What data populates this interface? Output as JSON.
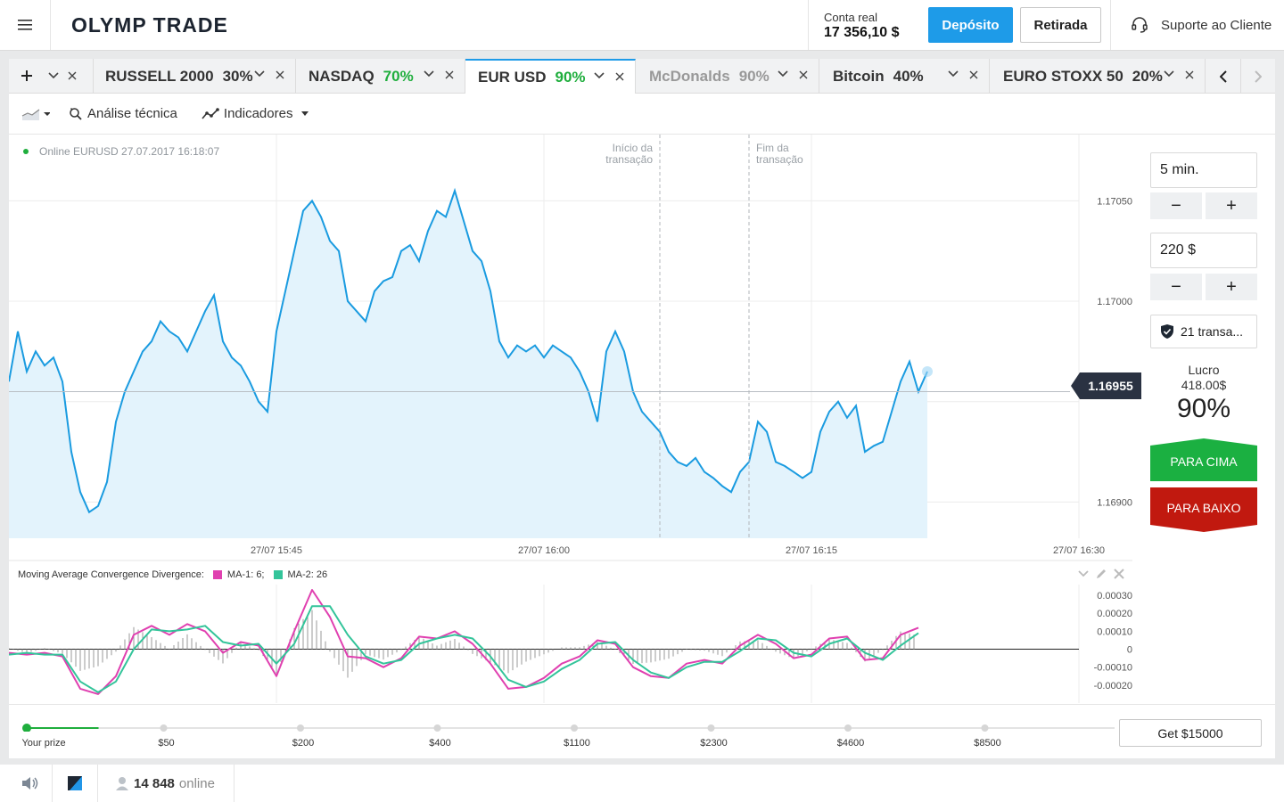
{
  "header": {
    "logo": "OLYMP TRADE",
    "account_label": "Conta real",
    "balance": "17 356,10 $",
    "deposit": "Depósito",
    "withdraw": "Retirada",
    "support": "Suporte ao Cliente"
  },
  "tabs": [
    {
      "name": "RUSSELL 2000",
      "pct": "30%"
    },
    {
      "name": "NASDAQ",
      "pct": "70%"
    },
    {
      "name": "EUR USD",
      "pct": "90%"
    },
    {
      "name": "McDonalds",
      "pct": "90%"
    },
    {
      "name": "Bitcoin",
      "pct": "40%"
    },
    {
      "name": "EURO STOXX 50",
      "pct": "20%"
    }
  ],
  "toolbar": {
    "analysis": "Análise técnica",
    "indicators": "Indicadores"
  },
  "chart_info": {
    "online": "Online EURUSD 27.07.2017 16:18:07",
    "start_label": [
      "Início da",
      "transação"
    ],
    "end_label": [
      "Fim da",
      "transação"
    ],
    "current_price": "1.16955"
  },
  "trade": {
    "time": "5 min.",
    "amount": "220 $",
    "minus": "−",
    "plus": "+",
    "transactions": "21 transa...",
    "profit_label": "Lucro",
    "profit_value": "418.00$",
    "profit_pct": "90%",
    "up": "PARA CIMA",
    "down": "PARA BAIXO"
  },
  "macd": {
    "title": "Moving Average Convergence Divergence:",
    "ma1": "MA-1: 6;",
    "ma2": "MA-2: 26",
    "ma1_color": "#e040b0",
    "ma2_color": "#33c49a"
  },
  "prize": {
    "levels": [
      "Your prize",
      "$50",
      "$200",
      "$400",
      "$1100",
      "$2300",
      "$4600",
      "$8500"
    ],
    "button": "Get $15000",
    "progress": 0.11
  },
  "footer": {
    "online_count": "14 848",
    "online_label": "online"
  },
  "chart_data": [
    {
      "type": "area",
      "title": "",
      "x_ticks": [
        "27/07 15:45",
        "27/07 16:00",
        "27/07 16:15",
        "27/07 16:30"
      ],
      "y_ticks": [
        1.1705,
        1.17,
        1.1695,
        1.169
      ],
      "y_tick_labels": [
        "1.17050",
        "1.17000",
        "",
        "1.16900"
      ],
      "ylim": [
        1.16882,
        1.17083
      ],
      "start_x": 16.5,
      "end_x": 21.5,
      "x_range": [
        -20,
        40
      ],
      "series": [
        {
          "color": "#1a9be0",
          "points": [
            [
              -20,
              1.1696
            ],
            [
              -19.5,
              1.16985
            ],
            [
              -19,
              1.16965
            ],
            [
              -18.5,
              1.16975
            ],
            [
              -18,
              1.16968
            ],
            [
              -17.5,
              1.16972
            ],
            [
              -17,
              1.1696
            ],
            [
              -16.5,
              1.16925
            ],
            [
              -16,
              1.16905
            ],
            [
              -15.5,
              1.16895
            ],
            [
              -15,
              1.16898
            ],
            [
              -14.5,
              1.1691
            ],
            [
              -14,
              1.1694
            ],
            [
              -13.5,
              1.16955
            ],
            [
              -13,
              1.16965
            ],
            [
              -12.5,
              1.16975
            ],
            [
              -12,
              1.1698
            ],
            [
              -11.5,
              1.1699
            ],
            [
              -11,
              1.16985
            ],
            [
              -10.5,
              1.16982
            ],
            [
              -10,
              1.16975
            ],
            [
              -9.5,
              1.16985
            ],
            [
              -9,
              1.16995
            ],
            [
              -8.5,
              1.17003
            ],
            [
              -8,
              1.1698
            ],
            [
              -7.5,
              1.16972
            ],
            [
              -7,
              1.16968
            ],
            [
              -6.5,
              1.1696
            ],
            [
              -6,
              1.1695
            ],
            [
              -5.5,
              1.16945
            ],
            [
              -5,
              1.16985
            ],
            [
              -4.5,
              1.17005
            ],
            [
              -4,
              1.17025
            ],
            [
              -3.5,
              1.17045
            ],
            [
              -3,
              1.1705
            ],
            [
              -2.5,
              1.17042
            ],
            [
              -2,
              1.1703
            ],
            [
              -1.5,
              1.17025
            ],
            [
              -1,
              1.17
            ],
            [
              -0.5,
              1.16995
            ],
            [
              0,
              1.1699
            ],
            [
              0.5,
              1.17005
            ],
            [
              1,
              1.1701
            ],
            [
              1.5,
              1.17012
            ],
            [
              2,
              1.17025
            ],
            [
              2.5,
              1.17028
            ],
            [
              3,
              1.1702
            ],
            [
              3.5,
              1.17035
            ],
            [
              4,
              1.17045
            ],
            [
              4.5,
              1.17042
            ],
            [
              5,
              1.17055
            ],
            [
              5.5,
              1.1704
            ],
            [
              6,
              1.17025
            ],
            [
              6.5,
              1.1702
            ],
            [
              7,
              1.17005
            ],
            [
              7.5,
              1.1698
            ],
            [
              8,
              1.16972
            ],
            [
              8.5,
              1.16978
            ],
            [
              9,
              1.16975
            ],
            [
              9.5,
              1.16978
            ],
            [
              10,
              1.16972
            ],
            [
              10.5,
              1.16978
            ],
            [
              11,
              1.16975
            ],
            [
              11.5,
              1.16972
            ],
            [
              12,
              1.16965
            ],
            [
              12.5,
              1.16955
            ],
            [
              13,
              1.1694
            ],
            [
              13.5,
              1.16975
            ],
            [
              14,
              1.16985
            ],
            [
              14.5,
              1.16975
            ],
            [
              15,
              1.16955
            ],
            [
              15.5,
              1.16945
            ],
            [
              16,
              1.1694
            ],
            [
              16.5,
              1.16935
            ],
            [
              17,
              1.16925
            ],
            [
              17.5,
              1.1692
            ],
            [
              18,
              1.16918
            ],
            [
              18.5,
              1.16922
            ],
            [
              19,
              1.16915
            ],
            [
              19.5,
              1.16912
            ],
            [
              20,
              1.16908
            ],
            [
              20.5,
              1.16905
            ],
            [
              21,
              1.16915
            ],
            [
              21.5,
              1.1692
            ],
            [
              22,
              1.1694
            ],
            [
              22.5,
              1.16935
            ],
            [
              23,
              1.1692
            ],
            [
              23.5,
              1.16918
            ],
            [
              24,
              1.16915
            ],
            [
              24.5,
              1.16912
            ],
            [
              25,
              1.16915
            ],
            [
              25.5,
              1.16935
            ],
            [
              26,
              1.16945
            ],
            [
              26.5,
              1.1695
            ],
            [
              27,
              1.16942
            ],
            [
              27.5,
              1.16948
            ],
            [
              28,
              1.16925
            ],
            [
              28.5,
              1.16928
            ],
            [
              29,
              1.1693
            ],
            [
              29.5,
              1.16945
            ],
            [
              30,
              1.1696
            ],
            [
              30.5,
              1.1697
            ],
            [
              31,
              1.16955
            ],
            [
              31.5,
              1.16965
            ]
          ]
        }
      ]
    },
    {
      "type": "line",
      "title": "Moving Average Convergence Divergence:",
      "y_ticks": [
        0.0003,
        0.0002,
        0.0001,
        0,
        -0.0001,
        -0.0002
      ],
      "y_tick_labels": [
        "0.00030",
        "0.00020",
        "0.00010",
        "0",
        "-0.00010",
        "-0.00020"
      ],
      "ylim": [
        -0.0003,
        0.00036
      ],
      "x_range": [
        -20,
        40
      ],
      "series": [
        {
          "name": "MA-1: 6;",
          "color": "#e040b0",
          "points": [
            [
              -20,
              -2e-05
            ],
            [
              -19,
              -3e-05
            ],
            [
              -18,
              -2e-05
            ],
            [
              -17,
              -4e-05
            ],
            [
              -16,
              -0.00022
            ],
            [
              -15,
              -0.00025
            ],
            [
              -14,
              -0.00015
            ],
            [
              -13,
              8e-05
            ],
            [
              -12,
              0.00013
            ],
            [
              -11,
              8e-05
            ],
            [
              -10,
              0.00014
            ],
            [
              -9,
              0.0001
            ],
            [
              -8,
              -2e-05
            ],
            [
              -7,
              4e-05
            ],
            [
              -6,
              2e-05
            ],
            [
              -5,
              -0.00015
            ],
            [
              -4,
              0.0001
            ],
            [
              -3,
              0.00033
            ],
            [
              -2,
              0.00018
            ],
            [
              -1,
              -4e-05
            ],
            [
              0,
              -5e-05
            ],
            [
              1,
              -0.0001
            ],
            [
              2,
              -5e-05
            ],
            [
              3,
              7e-05
            ],
            [
              4,
              6e-05
            ],
            [
              5,
              0.0001
            ],
            [
              6,
              3e-05
            ],
            [
              7,
              -8e-05
            ],
            [
              8,
              -0.00022
            ],
            [
              9,
              -0.00021
            ],
            [
              10,
              -0.00016
            ],
            [
              11,
              -8e-05
            ],
            [
              12,
              -4e-05
            ],
            [
              13,
              5e-05
            ],
            [
              14,
              3e-05
            ],
            [
              15,
              -0.0001
            ],
            [
              16,
              -0.00015
            ],
            [
              17,
              -0.00016
            ],
            [
              18,
              -8e-05
            ],
            [
              19,
              -6e-05
            ],
            [
              20,
              -8e-05
            ],
            [
              21,
              2e-05
            ],
            [
              22,
              8e-05
            ],
            [
              23,
              3e-05
            ],
            [
              24,
              -5e-05
            ],
            [
              25,
              -3e-05
            ],
            [
              26,
              6e-05
            ],
            [
              27,
              7e-05
            ],
            [
              28,
              -6e-05
            ],
            [
              29,
              -5e-05
            ],
            [
              30,
              8e-05
            ],
            [
              31,
              0.00012
            ]
          ]
        },
        {
          "name": "MA-2: 26",
          "color": "#33c49a",
          "points": [
            [
              -20,
              -3e-05
            ],
            [
              -19,
              -2e-05
            ],
            [
              -18,
              -3e-05
            ],
            [
              -17,
              -3e-05
            ],
            [
              -16,
              -0.00018
            ],
            [
              -15,
              -0.00024
            ],
            [
              -14,
              -0.00018
            ],
            [
              -13,
              0.0
            ],
            [
              -12,
              0.00011
            ],
            [
              -11,
              0.0001
            ],
            [
              -10,
              0.00011
            ],
            [
              -9,
              0.00013
            ],
            [
              -8,
              4e-05
            ],
            [
              -7,
              2e-05
            ],
            [
              -6,
              3e-05
            ],
            [
              -5,
              -8e-05
            ],
            [
              -4,
              3e-05
            ],
            [
              -3,
              0.00024
            ],
            [
              -2,
              0.00024
            ],
            [
              -1,
              8e-05
            ],
            [
              0,
              -4e-05
            ],
            [
              1,
              -8e-05
            ],
            [
              2,
              -6e-05
            ],
            [
              3,
              3e-05
            ],
            [
              4,
              6e-05
            ],
            [
              5,
              8e-05
            ],
            [
              6,
              6e-05
            ],
            [
              7,
              -4e-05
            ],
            [
              8,
              -0.00017
            ],
            [
              9,
              -0.00021
            ],
            [
              10,
              -0.00018
            ],
            [
              11,
              -0.00011
            ],
            [
              12,
              -6e-05
            ],
            [
              13,
              3e-05
            ],
            [
              14,
              4e-05
            ],
            [
              15,
              -6e-05
            ],
            [
              16,
              -0.00013
            ],
            [
              17,
              -0.00016
            ],
            [
              18,
              -0.0001
            ],
            [
              19,
              -7e-05
            ],
            [
              20,
              -7e-05
            ],
            [
              21,
              -1e-05
            ],
            [
              22,
              6e-05
            ],
            [
              23,
              5e-05
            ],
            [
              24,
              -2e-05
            ],
            [
              25,
              -4e-05
            ],
            [
              26,
              3e-05
            ],
            [
              27,
              6e-05
            ],
            [
              28,
              -2e-05
            ],
            [
              29,
              -6e-05
            ],
            [
              30,
              2e-05
            ],
            [
              31,
              9e-05
            ]
          ]
        }
      ]
    }
  ]
}
